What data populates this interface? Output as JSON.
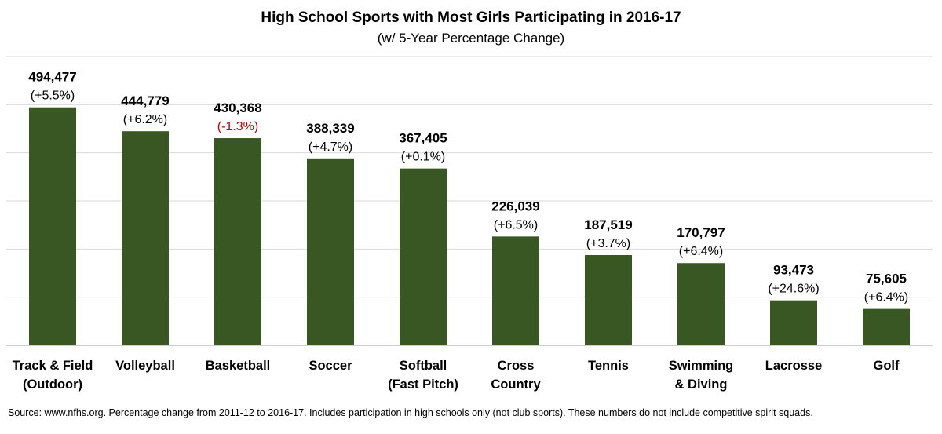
{
  "chart_data": {
    "type": "bar",
    "title": "High School Sports with Most Girls Participating in 2016-17",
    "subtitle": "(w/ 5-Year Percentage Change)",
    "categories": [
      [
        "Track & Field",
        "(Outdoor)"
      ],
      [
        "Volleyball"
      ],
      [
        "Basketball"
      ],
      [
        "Soccer"
      ],
      [
        "Softball",
        "(Fast Pitch)"
      ],
      [
        "Cross",
        "Country"
      ],
      [
        "Tennis"
      ],
      [
        "Swimming",
        "& Diving"
      ],
      [
        "Lacrosse"
      ],
      [
        "Golf"
      ]
    ],
    "values": [
      494477,
      444779,
      430368,
      388339,
      367405,
      226039,
      187519,
      170797,
      93473,
      75605
    ],
    "value_labels": [
      "494,477",
      "444,779",
      "430,368",
      "388,339",
      "367,405",
      "226,039",
      "187,519",
      "170,797",
      "93,473",
      "75,605"
    ],
    "change_labels": [
      "(+5.5%)",
      "(+6.2%)",
      "(-1.3%)",
      "(+4.7%)",
      "(+0.1%)",
      "(+6.5%)",
      "(+3.7%)",
      "(+6.4%)",
      "(+24.6%)",
      "(+6.4%)"
    ],
    "ylim": [
      0,
      600000
    ],
    "grid": true,
    "xlabel": "",
    "ylabel": ""
  },
  "source": "Source: www.nfhs.org. Percentage change from 2011-12 to 2016-17. Includes participation in high schools only (not club sports). These numbers do not include competitive spirit squads.",
  "colors": {
    "bar": "#385723",
    "negative": "#c00000",
    "grid": "#d9d9d9",
    "axis": "#bfbfbf"
  }
}
